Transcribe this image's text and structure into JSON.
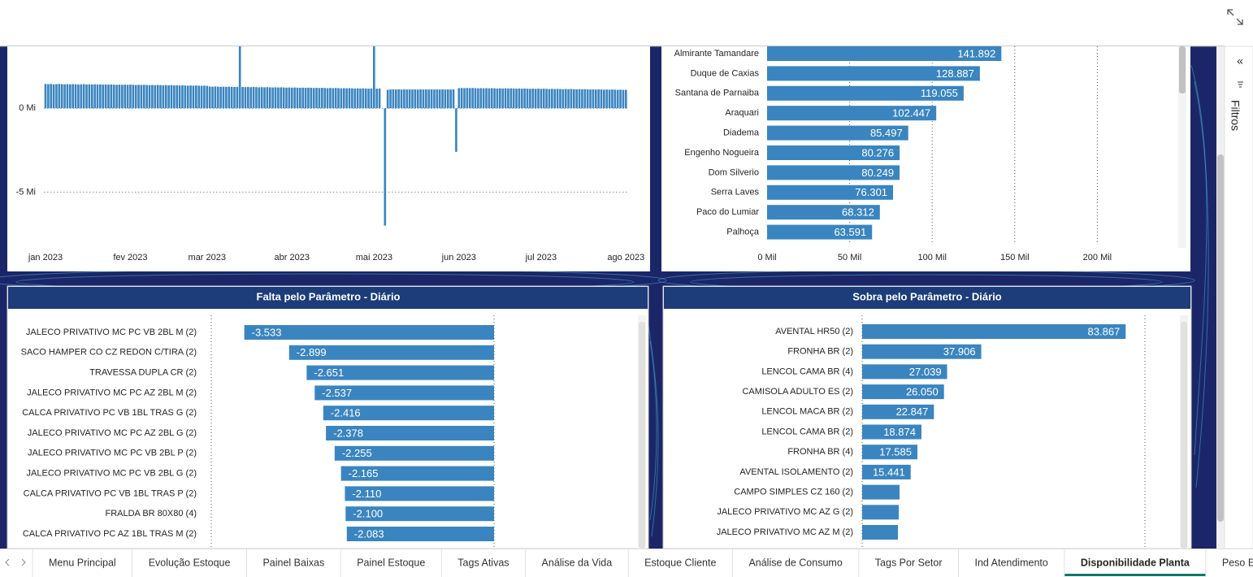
{
  "tabs": [
    {
      "label": "Menu Principal"
    },
    {
      "label": "Evolução Estoque"
    },
    {
      "label": "Painel Baixas"
    },
    {
      "label": "Painel Estoque"
    },
    {
      "label": "Tags Ativas"
    },
    {
      "label": "Análise da Vida"
    },
    {
      "label": "Estoque Cliente"
    },
    {
      "label": "Análise de Consumo"
    },
    {
      "label": "Tags Por Setor"
    },
    {
      "label": "Ind Atendimento"
    },
    {
      "label": "Disponibilidade Planta",
      "selected": true
    },
    {
      "label": "Peso Expedido"
    }
  ],
  "filters_pane": {
    "label": "Filtros"
  },
  "chart_data": [
    {
      "type": "bar",
      "color": "#3a85c0",
      "categories": [
        "jan 2023",
        null,
        null,
        null,
        null,
        null,
        null,
        null,
        null,
        null,
        null,
        null,
        null,
        null,
        null,
        null,
        null,
        null,
        null,
        null,
        null,
        null,
        null,
        null,
        null,
        null,
        null,
        null,
        null,
        null,
        null,
        "fev 2023",
        null,
        null,
        null,
        null,
        null,
        null,
        null,
        null,
        null,
        null,
        null,
        null,
        null,
        null,
        null,
        null,
        null,
        null,
        null,
        null,
        null,
        null,
        null,
        null,
        null,
        null,
        null,
        "mar 2023",
        null,
        null,
        null,
        null,
        null,
        null,
        null,
        null,
        null,
        null,
        null,
        null,
        null,
        null,
        null,
        null,
        null,
        null,
        null,
        null,
        null,
        null,
        null,
        null,
        null,
        null,
        null,
        null,
        null,
        null,
        "abr 2023",
        null,
        null,
        null,
        null,
        null,
        null,
        null,
        null,
        null,
        null,
        null,
        null,
        null,
        null,
        null,
        null,
        null,
        null,
        null,
        null,
        null,
        null,
        null,
        null,
        null,
        null,
        null,
        null,
        null,
        "mai 2023",
        null,
        null,
        null,
        null,
        null,
        null,
        null,
        null,
        null,
        null,
        null,
        null,
        null,
        null,
        null,
        null,
        null,
        null,
        null,
        null,
        null,
        null,
        null,
        null,
        null,
        null,
        null,
        null,
        null,
        null,
        "jun 2023",
        null,
        null,
        null,
        null,
        null,
        null,
        null,
        null,
        null,
        null,
        null,
        null,
        null,
        null,
        null,
        null,
        null,
        null,
        null,
        null,
        null,
        null,
        null,
        null,
        null,
        null,
        null,
        null,
        null,
        "jul 2023",
        null,
        null,
        null,
        null,
        null,
        null,
        null,
        null,
        null,
        null,
        null,
        null,
        null,
        null,
        null,
        null,
        null,
        null,
        null,
        null,
        null,
        null,
        null,
        null,
        null,
        null,
        null,
        null,
        null,
        null,
        "ago 2023"
      ],
      "values": [
        1.45,
        1.44,
        1.45,
        1.43,
        1.44,
        1.45,
        1.44,
        1.43,
        1.44,
        1.43,
        1.44,
        1.43,
        1.42,
        1.43,
        1.44,
        1.42,
        1.43,
        1.42,
        1.43,
        1.42,
        1.42,
        1.41,
        1.42,
        1.41,
        1.42,
        1.41,
        1.4,
        1.41,
        1.4,
        1.41,
        1.4,
        1.41,
        1.4,
        1.39,
        1.4,
        1.39,
        1.4,
        1.39,
        1.38,
        1.39,
        1.38,
        1.39,
        1.38,
        1.37,
        1.38,
        1.37,
        1.38,
        1.36,
        1.37,
        1.36,
        1.37,
        1.36,
        1.35,
        1.36,
        1.35,
        1.36,
        1.35,
        1.34,
        1.35,
        1.34,
        1.3,
        1.29,
        1.3,
        1.29,
        1.28,
        1.29,
        1.28,
        1.29,
        1.28,
        1.27,
        1.28,
        4.0,
        1.27,
        1.26,
        1.27,
        1.26,
        1.27,
        1.26,
        1.25,
        1.26,
        1.25,
        1.26,
        1.25,
        1.24,
        1.25,
        1.24,
        1.25,
        1.24,
        1.23,
        1.24,
        1.23,
        1.24,
        1.23,
        1.22,
        1.23,
        1.22,
        1.23,
        1.22,
        1.21,
        1.22,
        1.21,
        1.22,
        1.21,
        1.2,
        1.21,
        1.2,
        1.21,
        1.2,
        1.19,
        1.2,
        1.19,
        1.2,
        1.19,
        1.18,
        1.19,
        1.18,
        1.19,
        1.18,
        1.17,
        1.18,
        4.0,
        1.17,
        1.18,
        null,
        -7.0,
        1.1,
        1.12,
        1.13,
        1.12,
        1.13,
        1.12,
        1.13,
        1.12,
        1.13,
        1.12,
        1.13,
        1.12,
        1.13,
        1.12,
        1.13,
        1.12,
        1.13,
        1.12,
        1.13,
        1.12,
        1.13,
        1.12,
        1.13,
        1.12,
        1.13,
        -2.6,
        1.2,
        1.21,
        1.2,
        1.21,
        1.2,
        1.21,
        1.2,
        1.19,
        1.2,
        1.19,
        1.2,
        1.19,
        1.2,
        1.19,
        1.18,
        1.19,
        1.18,
        1.19,
        1.18,
        1.19,
        1.18,
        1.17,
        1.18,
        1.17,
        1.18,
        1.17,
        1.16,
        1.17,
        1.16,
        1.17,
        1.16,
        1.17,
        1.16,
        1.15,
        1.16,
        1.15,
        1.16,
        1.15,
        1.14,
        1.15,
        1.14,
        1.15,
        1.14,
        1.13,
        1.14,
        1.13,
        1.14,
        1.13,
        1.12,
        1.13,
        1.12,
        1.13,
        1.12,
        1.11,
        1.12,
        1.11,
        1.12,
        1.11,
        1.1,
        1.11,
        1.1,
        1.1
      ],
      "ylim": [
        -7.6,
        3.55
      ],
      "yticks": [
        {
          "value": 0,
          "label": "0 Mi"
        },
        {
          "value": -5,
          "label": "-5 Mi"
        }
      ],
      "grid": true
    },
    {
      "type": "hbar",
      "color": "#3a85c0",
      "categories": [
        "Almirante Tamandare",
        "Duque de Caxias",
        "Santana de Parnaiba",
        "Araquari",
        "Diadema",
        "Engenho Nogueira",
        "Dom Silverio",
        "Serra Laves",
        "Paco do Lumiar",
        "Palhoça"
      ],
      "values": [
        141892,
        128887,
        119055,
        102447,
        85497,
        80276,
        80249,
        76301,
        68312,
        63591
      ],
      "value_labels": [
        "141.892",
        "128.887",
        "119.055",
        "102.447",
        "85.497",
        "80.276",
        "80.249",
        "76.301",
        "68.312",
        "63.591"
      ],
      "xlim": [
        0,
        250000
      ],
      "xticks": [
        {
          "value": 0,
          "label": "0 Mil"
        },
        {
          "value": 50000,
          "label": "50 Mil"
        },
        {
          "value": 100000,
          "label": "100 Mil"
        },
        {
          "value": 150000,
          "label": "150 Mil"
        },
        {
          "value": 200000,
          "label": "200 Mil"
        }
      ],
      "grid": true
    },
    {
      "type": "hbar",
      "color": "#3a85c0",
      "title": "Falta pelo Parâmetro - Diário",
      "categories": [
        "JALECO PRIVATIVO MC PC VB 2BL M (2)",
        "SACO HAMPER CO CZ REDON C/TIRA (2)",
        "TRAVESSA DUPLA CR (2)",
        "JALECO PRIVATIVO MC PC AZ 2BL M (2)",
        "CALCA PRIVATIVO PC VB 1BL TRAS G (2)",
        "JALECO PRIVATIVO MC PC AZ 2BL G (2)",
        "JALECO PRIVATIVO MC PC VB 2BL P (2)",
        "JALECO PRIVATIVO MC PC VB 2BL G (2)",
        "CALCA PRIVATIVO PC VB 1BL TRAS P (2)",
        "FRALDA BR 80X80 (4)",
        "CALCA PRIVATIVO PC AZ 1BL TRAS M (2)"
      ],
      "values": [
        -3533,
        -2899,
        -2651,
        -2537,
        -2416,
        -2378,
        -2255,
        -2165,
        -2110,
        -2100,
        -2083
      ],
      "value_labels": [
        "-3.533",
        "-2.899",
        "-2.651",
        "-2.537",
        "-2.416",
        "-2.378",
        "-2.255",
        "-2.165",
        "-2.110",
        "-2.100",
        "-2.083"
      ],
      "xlim": [
        -4000,
        0
      ],
      "grid": true
    },
    {
      "type": "hbar",
      "color": "#3a85c0",
      "title": "Sobra pelo Parâmetro - Diário",
      "categories": [
        "AVENTAL HR50 (2)",
        "FRONHA BR (2)",
        "LENCOL CAMA BR (4)",
        "CAMISOLA ADULTO ES (2)",
        "LENCOL MACA BR (2)",
        "LENCOL CAMA BR (2)",
        "FRONHA BR (4)",
        "AVENTAL ISOLAMENTO (2)",
        "CAMPO SIMPLES CZ 160 (2)",
        "JALECO PRIVATIVO MC AZ G (2)",
        "JALECO PRIVATIVO MC AZ M (2)"
      ],
      "values": [
        83867,
        37906,
        27039,
        26050,
        22847,
        18874,
        17585,
        15441,
        11908,
        11650,
        11390
      ],
      "value_labels": [
        "83.867",
        "37.906",
        "27.039",
        "26.050",
        "22.847",
        "18.874",
        "17.585",
        "15.441",
        null,
        null,
        null
      ],
      "xlim": [
        0,
        90000
      ],
      "grid": true
    }
  ]
}
